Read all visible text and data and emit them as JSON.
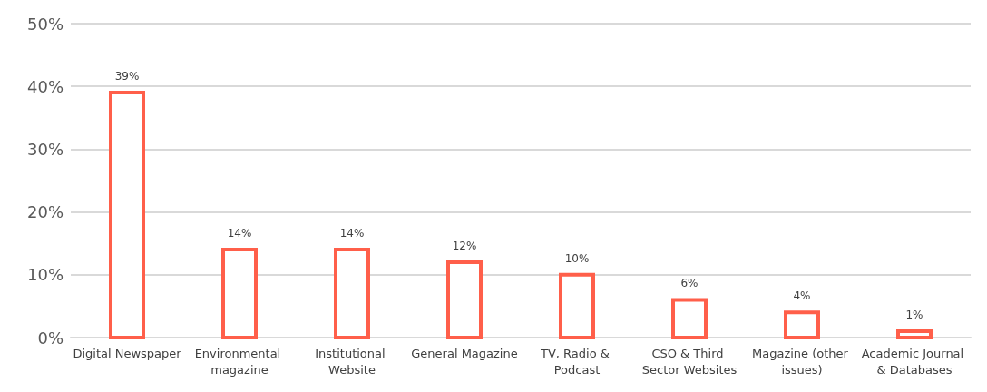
{
  "chart_data": {
    "type": "bar",
    "categories": [
      "Digital Newspaper",
      "Environmental magazine",
      "Institutional Website",
      "General Magazine",
      "TV, Radio & Podcast",
      "CSO & Third Sector Websites",
      "Magazine (other issues)",
      "Academic Journal & Databases"
    ],
    "values": [
      39,
      14,
      14,
      12,
      10,
      6,
      4,
      1
    ],
    "value_labels": [
      "39%",
      "14%",
      "14%",
      "12%",
      "10%",
      "6%",
      "4%",
      "1%"
    ],
    "color": "#ff5f4a",
    "ylim": [
      0,
      50
    ],
    "yticks": [
      {
        "value": 0,
        "label": "0%"
      },
      {
        "value": 10,
        "label": "10%"
      },
      {
        "value": 20,
        "label": "20%"
      },
      {
        "value": 30,
        "label": "30%"
      },
      {
        "value": 40,
        "label": "40%"
      },
      {
        "value": 50,
        "label": "50%"
      }
    ],
    "grid": "y"
  }
}
